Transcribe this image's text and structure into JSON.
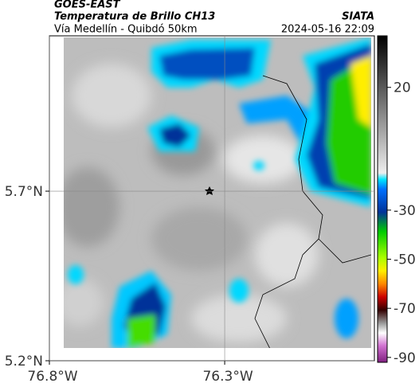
{
  "header": {
    "satellite": "GOES-EAST",
    "product": "Temperatura de Brillo CH13",
    "region": "Vía Medellín - Quibdó 50km",
    "source": "SIATA",
    "datetime": "2024-05-16 22:09"
  },
  "map": {
    "xlim": [
      -76.8,
      -75.873
    ],
    "ylim": [
      5.2,
      6.158
    ],
    "xticks": [
      {
        "value": -76.8,
        "label": "76.8°W"
      },
      {
        "value": -76.3,
        "label": "76.3°W"
      }
    ],
    "yticks": [
      {
        "value": 5.7,
        "label": "5.7°N"
      },
      {
        "value": 5.2,
        "label": "5.2°N"
      }
    ]
  },
  "colorbar": {
    "range": [
      -92,
      41
    ],
    "ticks": [
      20,
      -30,
      -50,
      -70,
      -90
    ]
  }
}
